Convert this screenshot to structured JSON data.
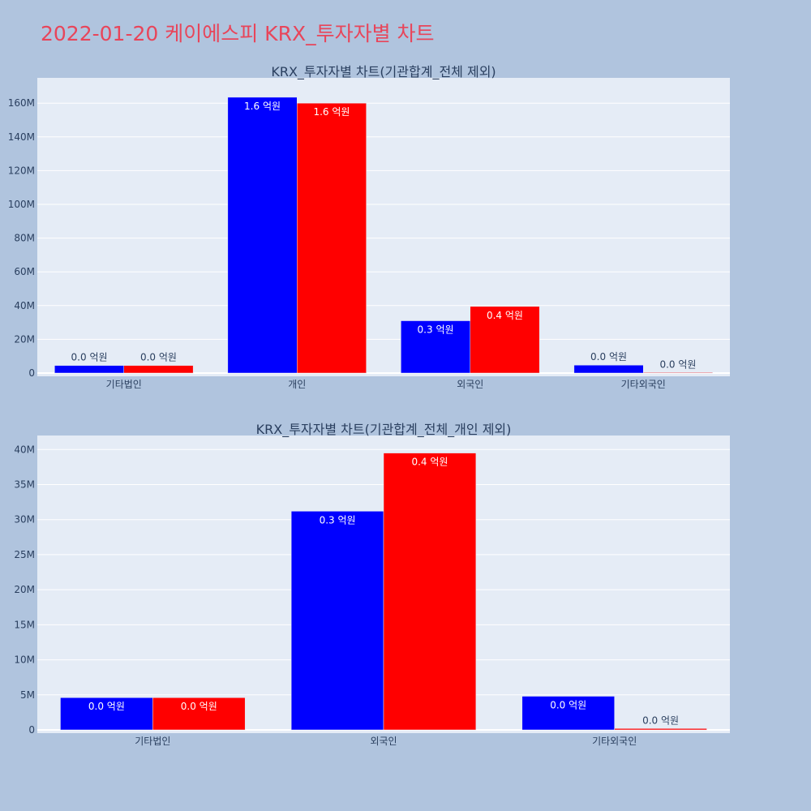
{
  "page": {
    "title": "2022-01-20 케이에스피 KRX_투자자별 차트"
  },
  "colors": {
    "series_a": "#0000ff",
    "series_b": "#ff0000",
    "plot_bg": "#e5ecf6",
    "paper_bg": "#b0c4de",
    "title": "#e8455a"
  },
  "chart_data": [
    {
      "type": "bar",
      "title": "KRX_투자자별 차트(기관합계_전체 제외)",
      "categories": [
        "기타법인",
        "개인",
        "외국인",
        "기타외국인"
      ],
      "series": [
        {
          "values": [
            4500000,
            163500000,
            31000000,
            4700000
          ],
          "labels": [
            "0.0 억원",
            "1.6 억원",
            "0.3 억원",
            "0.0 억원"
          ]
        },
        {
          "values": [
            4500000,
            160000000,
            39500000,
            200000
          ],
          "labels": [
            "0.0 억원",
            "1.6 억원",
            "0.4 억원",
            "0.0 억원"
          ]
        }
      ],
      "ylim": [
        0,
        175000000
      ],
      "yticks": [
        0,
        20000000,
        40000000,
        60000000,
        80000000,
        100000000,
        120000000,
        140000000,
        160000000
      ],
      "ytick_labels": [
        "0",
        "20M",
        "40M",
        "60M",
        "80M",
        "100M",
        "120M",
        "140M",
        "160M"
      ]
    },
    {
      "type": "bar",
      "title": "KRX_투자자별 차트(기관합계_전체_개인 제외)",
      "categories": [
        "기타법인",
        "외국인",
        "기타외국인"
      ],
      "series": [
        {
          "values": [
            4600000,
            31200000,
            4800000
          ],
          "labels": [
            "0.0 억원",
            "0.3 억원",
            "0.0 억원"
          ]
        },
        {
          "values": [
            4600000,
            39500000,
            200000
          ],
          "labels": [
            "0.0 억원",
            "0.4 억원",
            "0.0 억원"
          ]
        }
      ],
      "ylim": [
        0,
        42000000
      ],
      "yticks": [
        0,
        5000000,
        10000000,
        15000000,
        20000000,
        25000000,
        30000000,
        35000000,
        40000000
      ],
      "ytick_labels": [
        "0",
        "5M",
        "10M",
        "15M",
        "20M",
        "25M",
        "30M",
        "35M",
        "40M"
      ]
    }
  ]
}
